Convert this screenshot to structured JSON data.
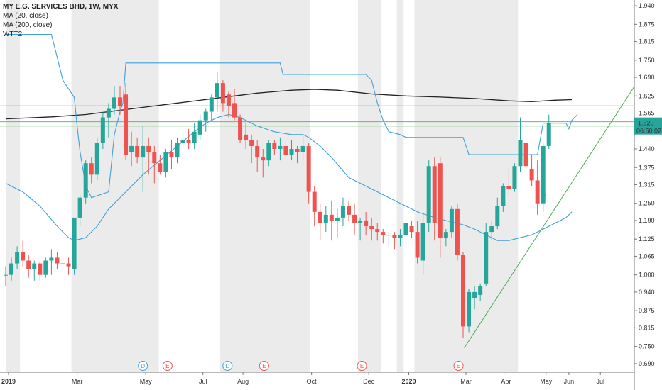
{
  "legend": {
    "symbol_line": "MY E.G. SERVICES BHD, 1W, MYX",
    "ma20": "MA (20, close)",
    "ma200": "MA (200, close)",
    "wtt": "WTT2"
  },
  "price_badge": {
    "value": "1.520",
    "countdown": "06:50:02",
    "color": "#26a69a"
  },
  "colors": {
    "up": "#26a69a",
    "down": "#ef5350",
    "ma20": "#3fa0db",
    "ma200": "#222222",
    "wtt": "#3fa0db",
    "trendline": "#4caf50",
    "hline_blue": "#3f3fbf",
    "hline_green": "#66bb6a",
    "session": "#ebebeb"
  },
  "chart_data": {
    "type": "candlestick",
    "ylim": [
      0.66,
      1.96
    ],
    "y_ticks": [
      "1.940",
      "1.875",
      "1.815",
      "1.750",
      "1.690",
      "1.625",
      "1.565",
      "1.505",
      "1.440",
      "1.375",
      "1.315",
      "1.250",
      "1.190",
      "1.125",
      "1.065",
      "1.000",
      "0.940",
      "0.875",
      "0.815",
      "0.750",
      "0.690"
    ],
    "x_labels": [
      {
        "label": "2019",
        "i": 0.5,
        "major": true
      },
      {
        "label": "Mar",
        "i": 12.5,
        "major": false
      },
      {
        "label": "May",
        "i": 24.5,
        "major": false
      },
      {
        "label": "Jul",
        "i": 34.5,
        "major": false
      },
      {
        "label": "Aug",
        "i": 41.5,
        "major": false
      },
      {
        "label": "Oct",
        "i": 53.5,
        "major": false
      },
      {
        "label": "Dec",
        "i": 63.5,
        "major": false
      },
      {
        "label": "2020",
        "i": 70.5,
        "major": true
      },
      {
        "label": "Mar",
        "i": 80.5,
        "major": false
      },
      {
        "label": "Apr",
        "i": 87.5,
        "major": false
      },
      {
        "label": "May",
        "i": 94.5,
        "major": false
      },
      {
        "label": "Jun",
        "i": 98.5,
        "major": false
      },
      {
        "label": "Jul",
        "i": 104,
        "major": false
      }
    ],
    "events": [
      {
        "type": "D",
        "i": 24
      },
      {
        "type": "E",
        "i": 28.3
      },
      {
        "type": "D",
        "i": 38.8
      },
      {
        "type": "E",
        "i": 45.2
      },
      {
        "type": "E",
        "i": 62.3
      },
      {
        "type": "E",
        "i": 79.2
      }
    ],
    "horizontal_lines": [
      {
        "y": 1.59,
        "color": "#3f3fbf"
      },
      {
        "y": 1.535,
        "color": "#66bb6a"
      },
      {
        "y": 1.52,
        "color": "#66bb6a"
      }
    ],
    "trendline": {
      "from": [
        80.2,
        0.745
      ],
      "to": [
        110.5,
        1.675
      ]
    },
    "candles": [
      [
        1.0,
        1.03,
        0.96,
        1.0
      ],
      [
        1.0,
        1.06,
        0.98,
        1.04
      ],
      [
        1.04,
        1.1,
        1.02,
        1.08
      ],
      [
        1.08,
        1.12,
        1.03,
        1.05
      ],
      [
        1.05,
        1.07,
        0.99,
        1.02
      ],
      [
        1.02,
        1.05,
        0.98,
        1.04
      ],
      [
        1.04,
        1.05,
        0.98,
        1.0
      ],
      [
        1.0,
        1.06,
        0.99,
        1.05
      ],
      [
        1.05,
        1.09,
        1.0,
        1.06
      ],
      [
        1.06,
        1.08,
        1.02,
        1.04
      ],
      [
        1.04,
        1.06,
        1.0,
        1.04
      ],
      [
        1.04,
        1.06,
        1.0,
        1.03
      ],
      [
        1.02,
        1.2,
        1.0,
        1.2
      ],
      [
        1.2,
        1.28,
        1.17,
        1.27
      ],
      [
        1.27,
        1.4,
        1.25,
        1.39
      ],
      [
        1.39,
        1.41,
        1.32,
        1.35
      ],
      [
        1.35,
        1.48,
        1.33,
        1.46
      ],
      [
        1.46,
        1.57,
        1.44,
        1.55
      ],
      [
        1.55,
        1.6,
        1.48,
        1.58
      ],
      [
        1.58,
        1.66,
        1.56,
        1.62
      ],
      [
        1.62,
        1.66,
        1.56,
        1.59
      ],
      [
        1.63,
        1.67,
        1.4,
        1.42
      ],
      [
        1.43,
        1.5,
        1.38,
        1.45
      ],
      [
        1.45,
        1.48,
        1.39,
        1.41
      ],
      [
        1.41,
        1.52,
        1.29,
        1.45
      ],
      [
        1.45,
        1.48,
        1.35,
        1.43
      ],
      [
        1.43,
        1.45,
        1.32,
        1.39
      ],
      [
        1.39,
        1.42,
        1.35,
        1.36
      ],
      [
        1.36,
        1.44,
        1.34,
        1.43
      ],
      [
        1.43,
        1.47,
        1.37,
        1.41
      ],
      [
        1.41,
        1.48,
        1.39,
        1.46
      ],
      [
        1.46,
        1.5,
        1.44,
        1.47
      ],
      [
        1.47,
        1.51,
        1.44,
        1.46
      ],
      [
        1.46,
        1.53,
        1.44,
        1.5
      ],
      [
        1.49,
        1.56,
        1.47,
        1.54
      ],
      [
        1.54,
        1.58,
        1.5,
        1.57
      ],
      [
        1.57,
        1.63,
        1.54,
        1.62
      ],
      [
        1.62,
        1.71,
        1.57,
        1.67
      ],
      [
        1.67,
        1.68,
        1.57,
        1.6
      ],
      [
        1.63,
        1.64,
        1.55,
        1.59
      ],
      [
        1.6,
        1.65,
        1.54,
        1.55
      ],
      [
        1.55,
        1.56,
        1.46,
        1.47
      ],
      [
        1.49,
        1.53,
        1.44,
        1.47
      ],
      [
        1.47,
        1.49,
        1.39,
        1.45
      ],
      [
        1.45,
        1.47,
        1.36,
        1.41
      ],
      [
        1.41,
        1.44,
        1.34,
        1.4
      ],
      [
        1.4,
        1.47,
        1.38,
        1.46
      ],
      [
        1.46,
        1.47,
        1.42,
        1.44
      ],
      [
        1.44,
        1.48,
        1.4,
        1.45
      ],
      [
        1.45,
        1.47,
        1.41,
        1.42
      ],
      [
        1.42,
        1.47,
        1.4,
        1.44
      ],
      [
        1.44,
        1.45,
        1.39,
        1.43
      ],
      [
        1.43,
        1.49,
        1.4,
        1.45
      ],
      [
        1.45,
        1.46,
        1.25,
        1.29
      ],
      [
        1.29,
        1.31,
        1.17,
        1.22
      ],
      [
        1.22,
        1.25,
        1.12,
        1.18
      ],
      [
        1.18,
        1.24,
        1.15,
        1.21
      ],
      [
        1.21,
        1.26,
        1.12,
        1.19
      ],
      [
        1.19,
        1.23,
        1.13,
        1.2
      ],
      [
        1.2,
        1.27,
        1.17,
        1.24
      ],
      [
        1.24,
        1.26,
        1.19,
        1.21
      ],
      [
        1.21,
        1.25,
        1.14,
        1.18
      ],
      [
        1.18,
        1.2,
        1.12,
        1.19
      ],
      [
        1.19,
        1.22,
        1.14,
        1.17
      ],
      [
        1.17,
        1.2,
        1.12,
        1.16
      ],
      [
        1.16,
        1.18,
        1.12,
        1.15
      ],
      [
        1.15,
        1.16,
        1.11,
        1.14
      ],
      [
        1.14,
        1.15,
        1.1,
        1.14
      ],
      [
        1.14,
        1.15,
        1.09,
        1.13
      ],
      [
        1.13,
        1.16,
        1.1,
        1.14
      ],
      [
        1.14,
        1.2,
        1.11,
        1.18
      ],
      [
        1.17,
        1.19,
        1.13,
        1.15
      ],
      [
        1.15,
        1.19,
        1.04,
        1.06
      ],
      [
        1.05,
        1.22,
        1.0,
        1.18
      ],
      [
        1.18,
        1.4,
        1.15,
        1.38
      ],
      [
        1.38,
        1.41,
        1.12,
        1.18
      ],
      [
        1.39,
        1.41,
        1.06,
        1.13
      ],
      [
        1.13,
        1.16,
        1.1,
        1.15
      ],
      [
        1.15,
        1.24,
        1.13,
        1.23
      ],
      [
        1.23,
        1.25,
        1.05,
        1.07
      ],
      [
        1.07,
        1.08,
        0.78,
        0.82
      ],
      [
        0.82,
        0.95,
        0.8,
        0.94
      ],
      [
        0.92,
        0.96,
        0.88,
        0.94
      ],
      [
        0.93,
        0.97,
        0.91,
        0.96
      ],
      [
        0.97,
        1.18,
        0.96,
        1.15
      ],
      [
        1.15,
        1.19,
        1.12,
        1.17
      ],
      [
        1.17,
        1.27,
        1.16,
        1.24
      ],
      [
        1.24,
        1.32,
        1.22,
        1.31
      ],
      [
        1.31,
        1.37,
        1.28,
        1.3
      ],
      [
        1.3,
        1.39,
        1.29,
        1.38
      ],
      [
        1.38,
        1.55,
        1.36,
        1.47
      ],
      [
        1.46,
        1.48,
        1.37,
        1.38
      ],
      [
        1.37,
        1.42,
        1.31,
        1.33
      ],
      [
        1.33,
        1.4,
        1.21,
        1.25
      ],
      [
        1.25,
        1.46,
        1.22,
        1.45
      ],
      [
        1.45,
        1.56,
        1.44,
        1.53
      ]
    ],
    "ma20": [
      [
        0,
        1.32
      ],
      [
        3,
        1.29
      ],
      [
        6,
        1.24
      ],
      [
        9,
        1.17
      ],
      [
        11,
        1.13
      ],
      [
        12,
        1.12
      ],
      [
        14,
        1.13
      ],
      [
        16,
        1.17
      ],
      [
        18,
        1.23
      ],
      [
        21,
        1.29
      ],
      [
        24,
        1.35
      ],
      [
        27,
        1.4
      ],
      [
        30,
        1.45
      ],
      [
        33,
        1.5
      ],
      [
        35,
        1.53
      ],
      [
        37,
        1.55
      ],
      [
        39,
        1.56
      ],
      [
        41,
        1.55
      ],
      [
        44,
        1.52
      ],
      [
        47,
        1.5
      ],
      [
        50,
        1.49
      ],
      [
        52,
        1.49
      ],
      [
        53,
        1.48
      ],
      [
        55,
        1.45
      ],
      [
        57,
        1.41
      ],
      [
        60,
        1.34
      ],
      [
        63,
        1.31
      ],
      [
        66,
        1.28
      ],
      [
        69,
        1.25
      ],
      [
        72,
        1.22
      ],
      [
        75,
        1.2
      ],
      [
        77,
        1.19
      ],
      [
        79,
        1.18
      ],
      [
        80,
        1.175
      ],
      [
        82,
        1.16
      ],
      [
        84,
        1.14
      ],
      [
        86,
        1.12
      ],
      [
        88,
        1.12
      ],
      [
        90,
        1.13
      ],
      [
        92,
        1.14
      ],
      [
        94,
        1.16
      ],
      [
        96,
        1.18
      ],
      [
        98,
        1.2
      ],
      [
        99,
        1.22
      ]
    ],
    "ma200": [
      [
        0,
        1.545
      ],
      [
        8,
        1.552
      ],
      [
        14,
        1.56
      ],
      [
        20,
        1.575
      ],
      [
        26,
        1.59
      ],
      [
        32,
        1.605
      ],
      [
        38,
        1.62
      ],
      [
        44,
        1.635
      ],
      [
        50,
        1.645
      ],
      [
        54,
        1.648
      ],
      [
        58,
        1.645
      ],
      [
        64,
        1.632
      ],
      [
        70,
        1.625
      ],
      [
        76,
        1.621
      ],
      [
        82,
        1.616
      ],
      [
        88,
        1.608
      ],
      [
        92,
        1.605
      ],
      [
        96,
        1.61
      ],
      [
        99,
        1.612
      ]
    ],
    "wtt2": [
      [
        0,
        1.84
      ],
      [
        8,
        1.84
      ],
      [
        9,
        1.76
      ],
      [
        10,
        1.68
      ],
      [
        12,
        1.62
      ],
      [
        12.5,
        1.52
      ],
      [
        13,
        1.43
      ],
      [
        14,
        1.31
      ],
      [
        15,
        1.27
      ],
      [
        18,
        1.29
      ],
      [
        19,
        1.49
      ],
      [
        20,
        1.57
      ],
      [
        20.5,
        1.6
      ],
      [
        21,
        1.74
      ],
      [
        22,
        1.74
      ],
      [
        24,
        1.74
      ],
      [
        48,
        1.74
      ],
      [
        48.5,
        1.7
      ],
      [
        63,
        1.7
      ],
      [
        64,
        1.68
      ],
      [
        65,
        1.6
      ],
      [
        66,
        1.54
      ],
      [
        67,
        1.5
      ],
      [
        69,
        1.49
      ],
      [
        70,
        1.48
      ],
      [
        80,
        1.48
      ],
      [
        81,
        1.42
      ],
      [
        93,
        1.42
      ],
      [
        94,
        1.53
      ],
      [
        98,
        1.53
      ],
      [
        98.5,
        1.51
      ],
      [
        99,
        1.54
      ],
      [
        100,
        1.56
      ]
    ]
  }
}
